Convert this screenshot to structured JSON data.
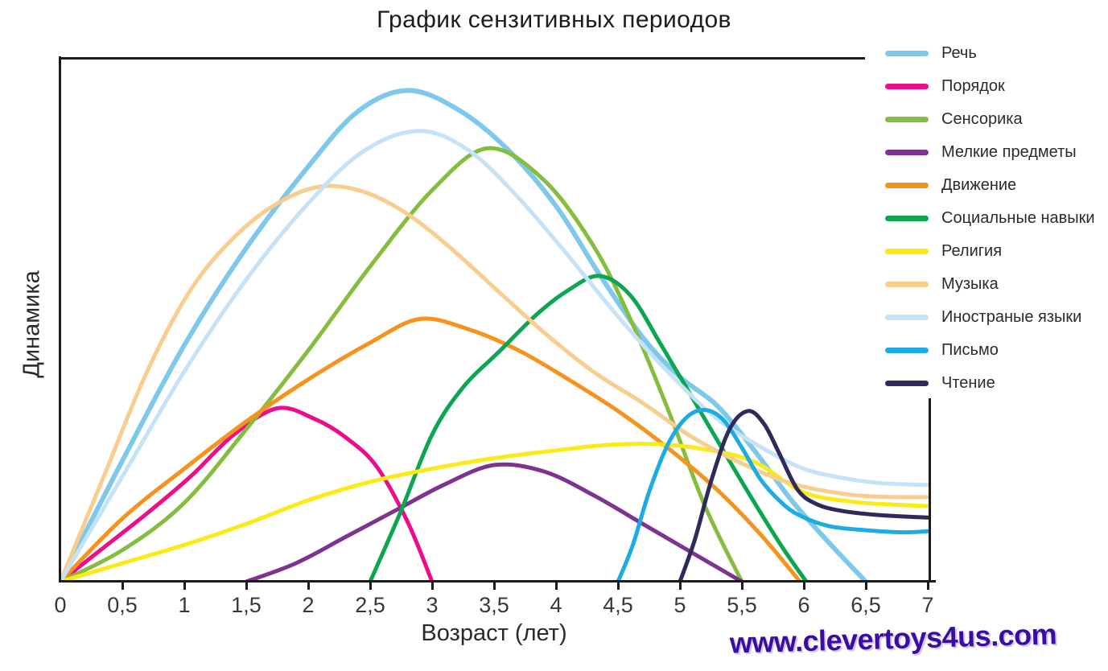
{
  "watermark": {
    "text": "www.clevertoys4us.com",
    "color": "#3A0CA3"
  },
  "axes": {
    "color": "#1b1b1b"
  },
  "chart_data": {
    "type": "line",
    "title": "График сензитивных периодов",
    "xlabel": "Возраст (лет)",
    "ylabel": "Динамика",
    "xlim": [
      0,
      7
    ],
    "ylim": [
      0,
      1
    ],
    "grid": false,
    "legend_position": "right",
    "x_ticks": [
      {
        "label": "0",
        "value": 0
      },
      {
        "label": "0,5",
        "value": 0.5
      },
      {
        "label": "1",
        "value": 1
      },
      {
        "label": "1,5",
        "value": 1.5
      },
      {
        "label": "2",
        "value": 2
      },
      {
        "label": "2,5",
        "value": 2.5
      },
      {
        "label": "3",
        "value": 3
      },
      {
        "label": "3,5",
        "value": 3.5
      },
      {
        "label": "4",
        "value": 4
      },
      {
        "label": "4,5",
        "value": 4.5
      },
      {
        "label": "5",
        "value": 5
      },
      {
        "label": "5,5",
        "value": 5.5
      },
      {
        "label": "6",
        "value": 6
      },
      {
        "label": "6,5",
        "value": 6.5
      },
      {
        "label": "7",
        "value": 7
      }
    ],
    "series": [
      {
        "name": "Речь",
        "color": "#7EC8EC",
        "width": 6,
        "points": [
          [
            0,
            0
          ],
          [
            0.5,
            0.23
          ],
          [
            1,
            0.45
          ],
          [
            1.5,
            0.635
          ],
          [
            2,
            0.79
          ],
          [
            2.4,
            0.895
          ],
          [
            2.8,
            0.935
          ],
          [
            3.2,
            0.9
          ],
          [
            3.6,
            0.825
          ],
          [
            4.0,
            0.715
          ],
          [
            4.35,
            0.585
          ],
          [
            4.7,
            0.465
          ],
          [
            5.0,
            0.39
          ],
          [
            5.3,
            0.335
          ],
          [
            5.6,
            0.25
          ],
          [
            5.9,
            0.155
          ],
          [
            6.2,
            0.075
          ],
          [
            6.5,
            0
          ]
        ]
      },
      {
        "name": "Порядок",
        "color": "#EB0D8C",
        "width": 5,
        "points": [
          [
            0,
            0
          ],
          [
            0.35,
            0.065
          ],
          [
            0.7,
            0.13
          ],
          [
            1.05,
            0.2
          ],
          [
            1.4,
            0.28
          ],
          [
            1.75,
            0.33
          ],
          [
            2.05,
            0.31
          ],
          [
            2.3,
            0.275
          ],
          [
            2.55,
            0.22
          ],
          [
            2.8,
            0.115
          ],
          [
            3.0,
            0
          ]
        ]
      },
      {
        "name": "Сенсорика",
        "color": "#85BD3F",
        "width": 5,
        "points": [
          [
            0,
            0
          ],
          [
            0.5,
            0.06
          ],
          [
            1,
            0.15
          ],
          [
            1.5,
            0.29
          ],
          [
            2,
            0.44
          ],
          [
            2.5,
            0.6
          ],
          [
            3,
            0.745
          ],
          [
            3.45,
            0.825
          ],
          [
            3.9,
            0.765
          ],
          [
            4.3,
            0.64
          ],
          [
            4.6,
            0.5
          ],
          [
            4.9,
            0.33
          ],
          [
            5.2,
            0.145
          ],
          [
            5.5,
            0
          ]
        ]
      },
      {
        "name": "Мелкие предметы",
        "color": "#7E3391",
        "width": 5,
        "points": [
          [
            1.5,
            0
          ],
          [
            1.9,
            0.035
          ],
          [
            2.3,
            0.085
          ],
          [
            2.7,
            0.135
          ],
          [
            3.1,
            0.185
          ],
          [
            3.5,
            0.222
          ],
          [
            3.9,
            0.21
          ],
          [
            4.3,
            0.165
          ],
          [
            4.7,
            0.11
          ],
          [
            5.1,
            0.055
          ],
          [
            5.5,
            0
          ]
        ]
      },
      {
        "name": "Движение",
        "color": "#F6921E",
        "width": 5,
        "points": [
          [
            0,
            0
          ],
          [
            0.5,
            0.12
          ],
          [
            1,
            0.215
          ],
          [
            1.5,
            0.305
          ],
          [
            2,
            0.385
          ],
          [
            2.5,
            0.455
          ],
          [
            2.9,
            0.5
          ],
          [
            3.3,
            0.48
          ],
          [
            3.7,
            0.44
          ],
          [
            4.1,
            0.385
          ],
          [
            4.5,
            0.325
          ],
          [
            4.9,
            0.255
          ],
          [
            5.3,
            0.175
          ],
          [
            5.65,
            0.09
          ],
          [
            5.97,
            0
          ]
        ]
      },
      {
        "name": "Социальные навыки",
        "color": "#0CA64F",
        "width": 5,
        "points": [
          [
            2.5,
            0
          ],
          [
            2.75,
            0.135
          ],
          [
            3.0,
            0.28
          ],
          [
            3.25,
            0.37
          ],
          [
            3.55,
            0.44
          ],
          [
            3.85,
            0.51
          ],
          [
            4.1,
            0.555
          ],
          [
            4.35,
            0.582
          ],
          [
            4.6,
            0.545
          ],
          [
            4.85,
            0.45
          ],
          [
            5.2,
            0.31
          ],
          [
            5.5,
            0.19
          ],
          [
            5.8,
            0.075
          ],
          [
            6.02,
            0
          ]
        ]
      },
      {
        "name": "Религия",
        "color": "#FBEA16",
        "width": 5,
        "points": [
          [
            0,
            0
          ],
          [
            0.5,
            0.035
          ],
          [
            1,
            0.07
          ],
          [
            1.5,
            0.11
          ],
          [
            2,
            0.155
          ],
          [
            2.5,
            0.19
          ],
          [
            3,
            0.215
          ],
          [
            3.5,
            0.235
          ],
          [
            4,
            0.25
          ],
          [
            4.4,
            0.26
          ],
          [
            4.8,
            0.262
          ],
          [
            5.2,
            0.252
          ],
          [
            5.6,
            0.228
          ],
          [
            6.0,
            0.17
          ],
          [
            6.4,
            0.152
          ],
          [
            6.7,
            0.147
          ],
          [
            7,
            0.144
          ]
        ]
      },
      {
        "name": "Музыка",
        "color": "#F8CD8E",
        "width": 5,
        "points": [
          [
            0,
            0
          ],
          [
            0.35,
            0.2
          ],
          [
            0.7,
            0.4
          ],
          [
            1.05,
            0.555
          ],
          [
            1.4,
            0.655
          ],
          [
            1.75,
            0.72
          ],
          [
            2.1,
            0.752
          ],
          [
            2.45,
            0.742
          ],
          [
            2.8,
            0.7
          ],
          [
            3.15,
            0.635
          ],
          [
            3.5,
            0.56
          ],
          [
            3.9,
            0.475
          ],
          [
            4.3,
            0.4
          ],
          [
            4.7,
            0.34
          ],
          [
            5.1,
            0.275
          ],
          [
            5.5,
            0.225
          ],
          [
            5.9,
            0.187
          ],
          [
            6.3,
            0.168
          ],
          [
            6.6,
            0.162
          ],
          [
            7,
            0.161
          ]
        ]
      },
      {
        "name": "Иностраные языки",
        "color": "#C5E2F6",
        "width": 5,
        "points": [
          [
            0,
            0
          ],
          [
            0.5,
            0.2
          ],
          [
            1,
            0.4
          ],
          [
            1.5,
            0.575
          ],
          [
            2,
            0.72
          ],
          [
            2.45,
            0.82
          ],
          [
            2.9,
            0.858
          ],
          [
            3.3,
            0.82
          ],
          [
            3.7,
            0.73
          ],
          [
            4.1,
            0.62
          ],
          [
            4.5,
            0.505
          ],
          [
            4.9,
            0.4
          ],
          [
            5.3,
            0.31
          ],
          [
            5.7,
            0.25
          ],
          [
            6.0,
            0.215
          ],
          [
            6.3,
            0.198
          ],
          [
            6.6,
            0.188
          ],
          [
            7,
            0.184
          ]
        ]
      },
      {
        "name": "Письмо",
        "color": "#1CACE3",
        "width": 5,
        "points": [
          [
            4.5,
            0
          ],
          [
            4.62,
            0.07
          ],
          [
            4.75,
            0.17
          ],
          [
            4.9,
            0.26
          ],
          [
            5.05,
            0.312
          ],
          [
            5.2,
            0.327
          ],
          [
            5.35,
            0.308
          ],
          [
            5.5,
            0.255
          ],
          [
            5.65,
            0.195
          ],
          [
            5.8,
            0.155
          ],
          [
            5.95,
            0.128
          ],
          [
            6.2,
            0.106
          ],
          [
            6.5,
            0.098
          ],
          [
            6.8,
            0.094
          ],
          [
            7,
            0.096
          ]
        ]
      },
      {
        "name": "Чтение",
        "color": "#2F2A5C",
        "width": 5,
        "points": [
          [
            5.0,
            0
          ],
          [
            5.12,
            0.08
          ],
          [
            5.25,
            0.19
          ],
          [
            5.4,
            0.29
          ],
          [
            5.55,
            0.325
          ],
          [
            5.68,
            0.3
          ],
          [
            5.8,
            0.245
          ],
          [
            5.95,
            0.175
          ],
          [
            6.1,
            0.148
          ],
          [
            6.3,
            0.135
          ],
          [
            6.6,
            0.127
          ],
          [
            7,
            0.122
          ]
        ]
      }
    ]
  }
}
